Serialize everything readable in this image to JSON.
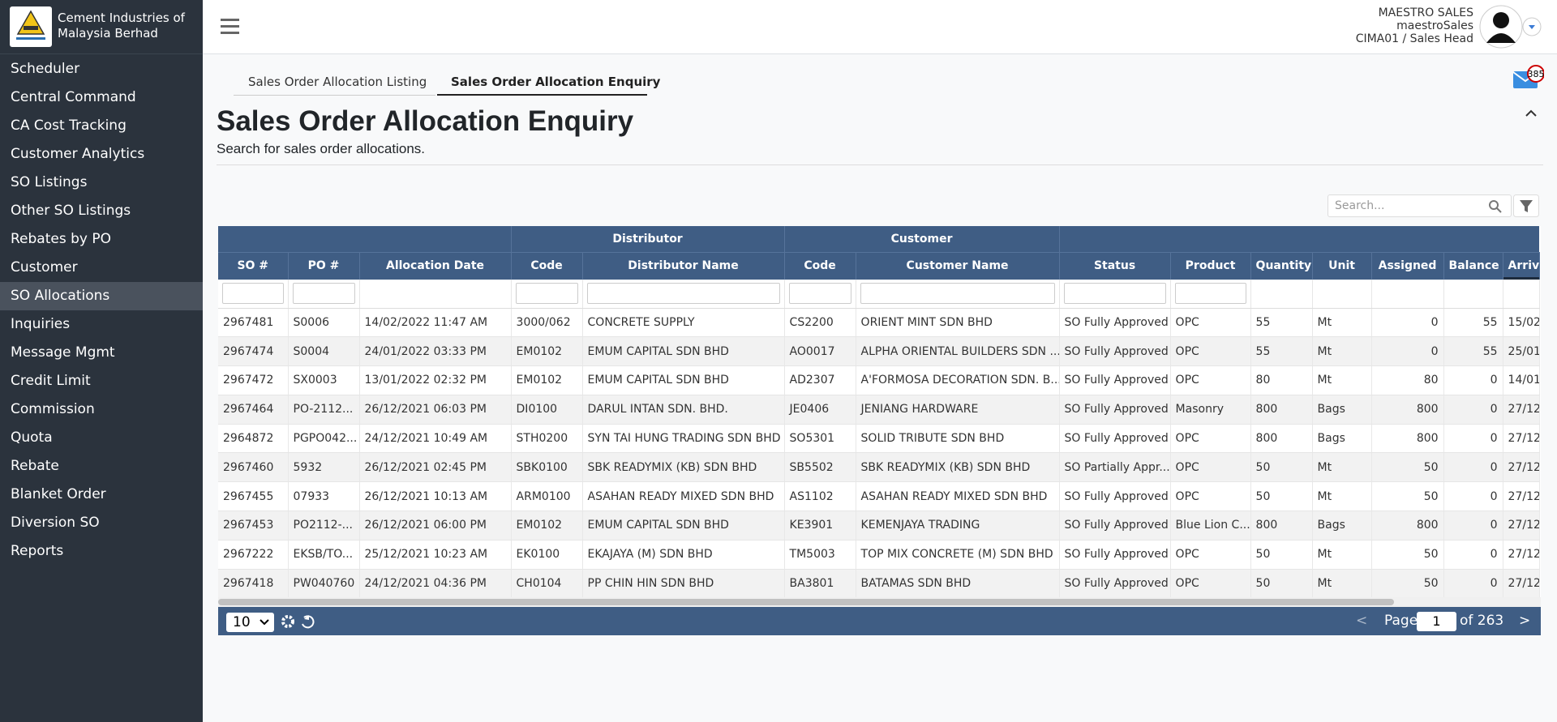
{
  "sidebar": {
    "company": [
      "Cement Industries of",
      "Malaysia Berhad"
    ],
    "items": [
      "Scheduler",
      "Central Command",
      "CA Cost Tracking",
      "Customer Analytics",
      "SO Listings",
      "Other SO Listings",
      "Rebates by PO",
      "Customer",
      "SO Allocations",
      "Inquiries",
      "Message Mgmt",
      "Credit Limit",
      "Commission",
      "Quota",
      "Rebate",
      "Blanket Order",
      "Diversion SO",
      "Reports"
    ]
  },
  "header": {
    "user_name": "MAESTRO SALES",
    "user_id": "maestroSales",
    "user_role": "CIMA01 / Sales Head",
    "message_count": "385"
  },
  "tabs": [
    "Sales Order Allocation Listing",
    "Sales Order Allocation Enquiry"
  ],
  "page": {
    "title": "Sales Order Allocation Enquiry",
    "subtitle": "Search for sales order allocations.",
    "search_placeholder": "Search..."
  },
  "table": {
    "distributor_group": "Distributor",
    "customer_group": "Customer",
    "columns": [
      "SO #",
      "PO #",
      "Allocation Date",
      "Code",
      "Distributor Name",
      "Code",
      "Customer Name",
      "Status",
      "Product",
      "Quantity",
      "Unit",
      "Assigned",
      "Balance",
      "Arriv"
    ],
    "rows": [
      [
        "2967481",
        "S0006",
        "14/02/2022 11:47 AM",
        "3000/062",
        "CONCRETE SUPPLY",
        "CS2200",
        "ORIENT MINT SDN BHD",
        "SO Fully Approved",
        "OPC",
        "55",
        "Mt",
        "0",
        "55",
        "15/02"
      ],
      [
        "2967474",
        "S0004",
        "24/01/2022 03:33 PM",
        "EM0102",
        "EMUM CAPITAL SDN BHD",
        "AO0017",
        "ALPHA ORIENTAL BUILDERS SDN ...",
        "SO Fully Approved",
        "OPC",
        "55",
        "Mt",
        "0",
        "55",
        "25/01"
      ],
      [
        "2967472",
        "SX0003",
        "13/01/2022 02:32 PM",
        "EM0102",
        "EMUM CAPITAL SDN BHD",
        "AD2307",
        "A'FORMOSA DECORATION SDN. B...",
        "SO Fully Approved",
        "OPC",
        "80",
        "Mt",
        "80",
        "0",
        "14/01"
      ],
      [
        "2967464",
        "PO-2112...",
        "26/12/2021 06:03 PM",
        "DI0100",
        "DARUL INTAN SDN. BHD.",
        "JE0406",
        "JENIANG HARDWARE",
        "SO Fully Approved",
        "Masonry",
        "800",
        "Bags",
        "800",
        "0",
        "27/12"
      ],
      [
        "2964872",
        "PGPO042...",
        "24/12/2021 10:49 AM",
        "STH0200",
        "SYN TAI HUNG TRADING SDN BHD",
        "SO5301",
        "SOLID TRIBUTE SDN BHD",
        "SO Fully Approved",
        "OPC",
        "800",
        "Bags",
        "800",
        "0",
        "27/12"
      ],
      [
        "2967460",
        "5932",
        "26/12/2021 02:45 PM",
        "SBK0100",
        "SBK READYMIX (KB) SDN BHD",
        "SB5502",
        "SBK READYMIX (KB) SDN BHD",
        "SO Partially Appr...",
        "OPC",
        "50",
        "Mt",
        "50",
        "0",
        "27/12"
      ],
      [
        "2967455",
        "07933",
        "26/12/2021 10:13 AM",
        "ARM0100",
        "ASAHAN READY MIXED SDN BHD",
        "AS1102",
        "ASAHAN READY MIXED SDN BHD",
        "SO Fully Approved",
        "OPC",
        "50",
        "Mt",
        "50",
        "0",
        "27/12"
      ],
      [
        "2967453",
        "PO2112-...",
        "26/12/2021 06:00 PM",
        "EM0102",
        "EMUM CAPITAL SDN BHD",
        "KE3901",
        "KEMENJAYA TRADING",
        "SO Fully Approved",
        "Blue Lion C...",
        "800",
        "Bags",
        "800",
        "0",
        "27/12"
      ],
      [
        "2967222",
        "EKSB/TO...",
        "25/12/2021 10:23 AM",
        "EK0100",
        "EKAJAYA (M) SDN BHD",
        "TM5003",
        "TOP MIX CONCRETE (M) SDN BHD",
        "SO Fully Approved",
        "OPC",
        "50",
        "Mt",
        "50",
        "0",
        "27/12"
      ],
      [
        "2967418",
        "PW040760",
        "24/12/2021 04:36 PM",
        "CH0104",
        "PP CHIN HIN SDN BHD",
        "BA3801",
        "BATAMAS SDN BHD",
        "SO Fully Approved",
        "OPC",
        "50",
        "Mt",
        "50",
        "0",
        "27/12"
      ]
    ]
  },
  "pagination": {
    "page_size": "10",
    "page_label": "Page",
    "page": "1",
    "of_pages": "of 263",
    "prev": "<",
    "next": ">"
  }
}
